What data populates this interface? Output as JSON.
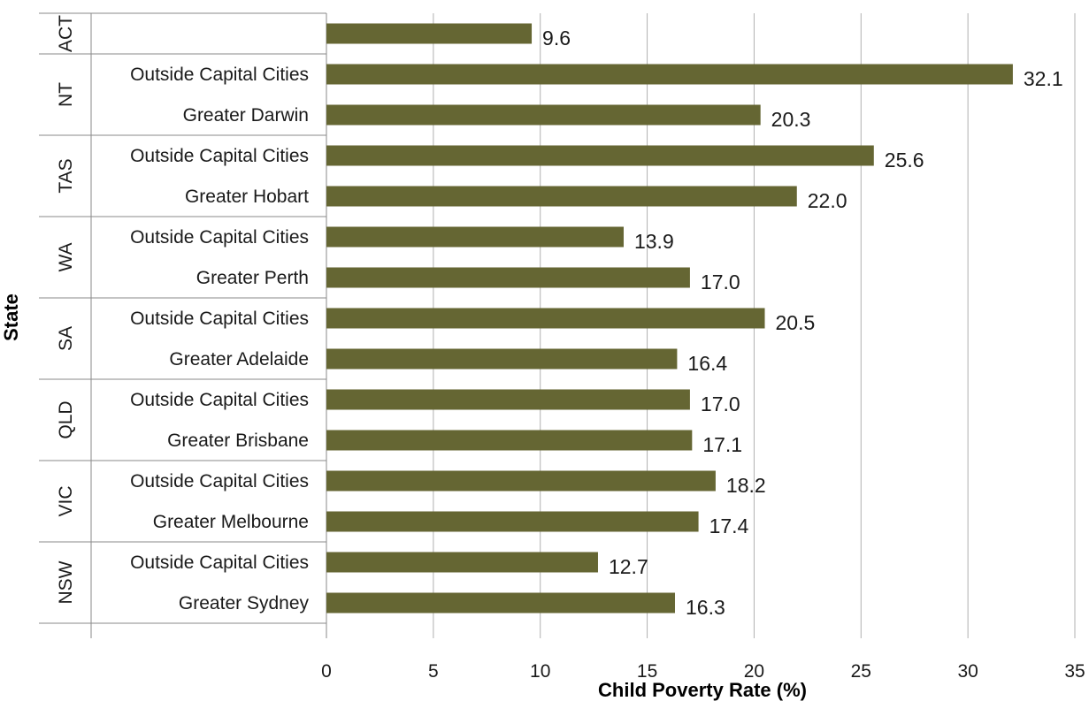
{
  "chart_data": {
    "type": "bar",
    "orientation": "horizontal",
    "title": "",
    "xlabel": "Child Poverty Rate (%)",
    "ylabel": "State",
    "xlim": [
      0,
      35
    ],
    "xticks": [
      "0",
      "5",
      "10",
      "15",
      "20",
      "25",
      "30",
      "35"
    ],
    "grid": "vertical",
    "legend": "none",
    "bar_color": "#656633",
    "groups": [
      {
        "state": "ACT",
        "bars": [
          {
            "category": "",
            "value": 9.6,
            "label": "9.6"
          }
        ]
      },
      {
        "state": "NT",
        "bars": [
          {
            "category": "Outside Capital Cities",
            "value": 32.1,
            "label": "32.1"
          },
          {
            "category": "Greater Darwin",
            "value": 20.3,
            "label": "20.3"
          }
        ]
      },
      {
        "state": "TAS",
        "bars": [
          {
            "category": "Outside Capital Cities",
            "value": 25.6,
            "label": "25.6"
          },
          {
            "category": "Greater Hobart",
            "value": 22.0,
            "label": "22.0"
          }
        ]
      },
      {
        "state": "WA",
        "bars": [
          {
            "category": "Outside Capital Cities",
            "value": 13.9,
            "label": "13.9"
          },
          {
            "category": "Greater Perth",
            "value": 17.0,
            "label": "17.0"
          }
        ]
      },
      {
        "state": "SA",
        "bars": [
          {
            "category": "Outside Capital Cities",
            "value": 20.5,
            "label": "20.5"
          },
          {
            "category": "Greater Adelaide",
            "value": 16.4,
            "label": "16.4"
          }
        ]
      },
      {
        "state": "QLD",
        "bars": [
          {
            "category": "Outside Capital Cities",
            "value": 17.0,
            "label": "17.0"
          },
          {
            "category": "Greater Brisbane",
            "value": 17.1,
            "label": "17.1"
          }
        ]
      },
      {
        "state": "VIC",
        "bars": [
          {
            "category": "Outside Capital Cities",
            "value": 18.2,
            "label": "18.2"
          },
          {
            "category": "Greater Melbourne",
            "value": 17.4,
            "label": "17.4"
          }
        ]
      },
      {
        "state": "NSW",
        "bars": [
          {
            "category": "Outside Capital Cities",
            "value": 12.7,
            "label": "12.7"
          },
          {
            "category": "Greater Sydney",
            "value": 16.3,
            "label": "16.3"
          }
        ]
      }
    ]
  }
}
